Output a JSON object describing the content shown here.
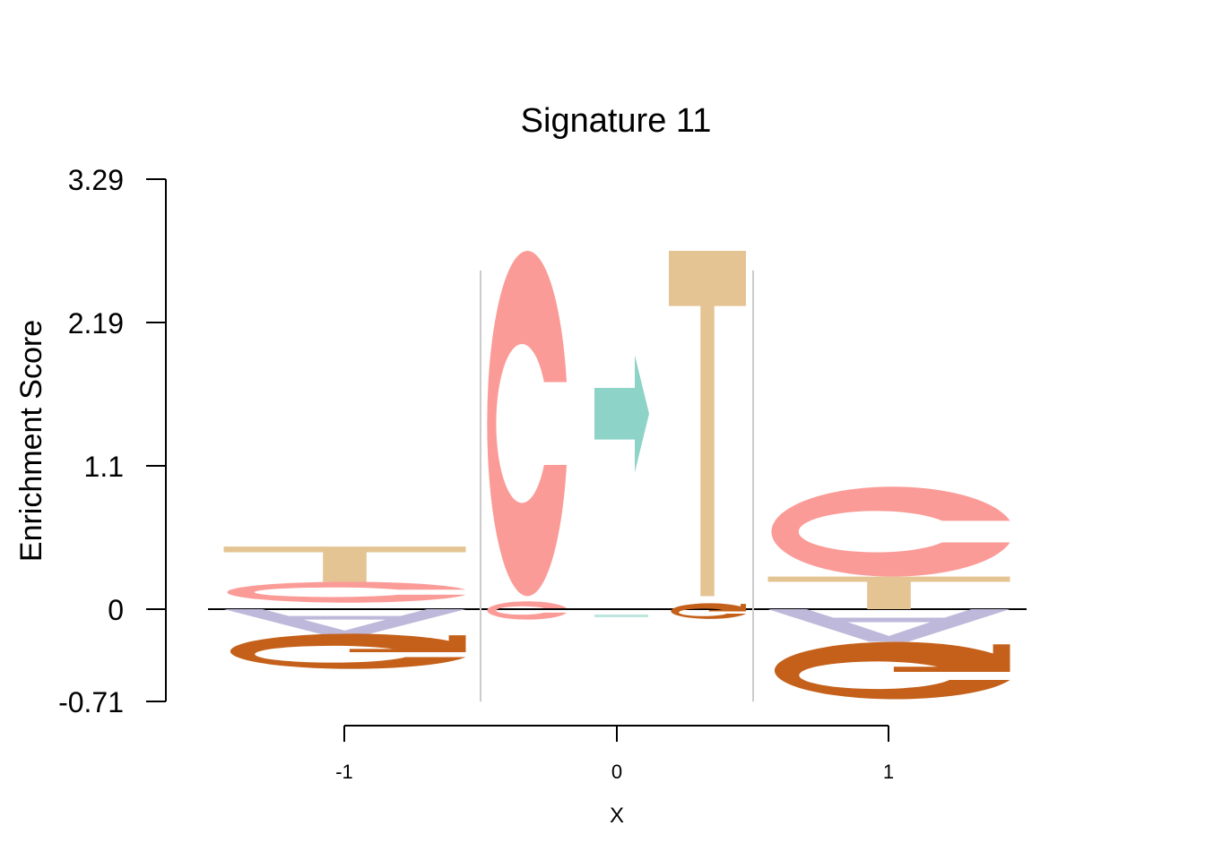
{
  "chart_data": {
    "type": "sequence-logo",
    "title": "Signature 11",
    "xlabel": "X",
    "ylabel": "Enrichment Score",
    "y_ticks": [
      "3.29",
      "2.19",
      "1.1",
      "0",
      "-0.71"
    ],
    "ylim": [
      -0.71,
      3.29
    ],
    "x_ticks": [
      "-1",
      "0",
      "1"
    ],
    "xlim": [
      -1.5,
      1.5
    ],
    "colors": {
      "A": "#beb8da",
      "C": "#fb9b97",
      "G": "#c4601a",
      "T": "#e5c493",
      "arrow": "#8dd3c7",
      "separator": "#cccccc",
      "baseline": "#000000"
    },
    "positions": [
      {
        "x": -1,
        "stack": [
          {
            "letter": "C",
            "from": 0.05,
            "to": 0.21
          },
          {
            "letter": "T",
            "from": 0.21,
            "to": 0.48
          },
          {
            "letter": "A",
            "from": -0.2,
            "to": 0.0
          },
          {
            "letter": "G",
            "from": -0.47,
            "to": -0.2
          }
        ]
      },
      {
        "x": 0,
        "mutation": {
          "ref": [
            {
              "letter": "C",
              "from": 0.1,
              "to": 2.75
            },
            {
              "letter": "C",
              "from": -0.08,
              "to": 0.06
            }
          ],
          "arrow": {
            "from": 1.05,
            "to": 1.95
          },
          "alt": [
            {
              "letter": "T",
              "from": 0.1,
              "to": 2.75
            },
            {
              "letter": "G",
              "from": -0.08,
              "to": 0.04
            }
          ],
          "separators": {
            "from": -0.71,
            "to": 2.6
          }
        }
      },
      {
        "x": 1,
        "stack": [
          {
            "letter": "T",
            "from": 0.0,
            "to": 0.25
          },
          {
            "letter": "C",
            "from": 0.25,
            "to": 0.94
          },
          {
            "letter": "A",
            "from": -0.25,
            "to": 0.0
          },
          {
            "letter": "G",
            "from": -0.71,
            "to": -0.27
          }
        ]
      }
    ]
  }
}
